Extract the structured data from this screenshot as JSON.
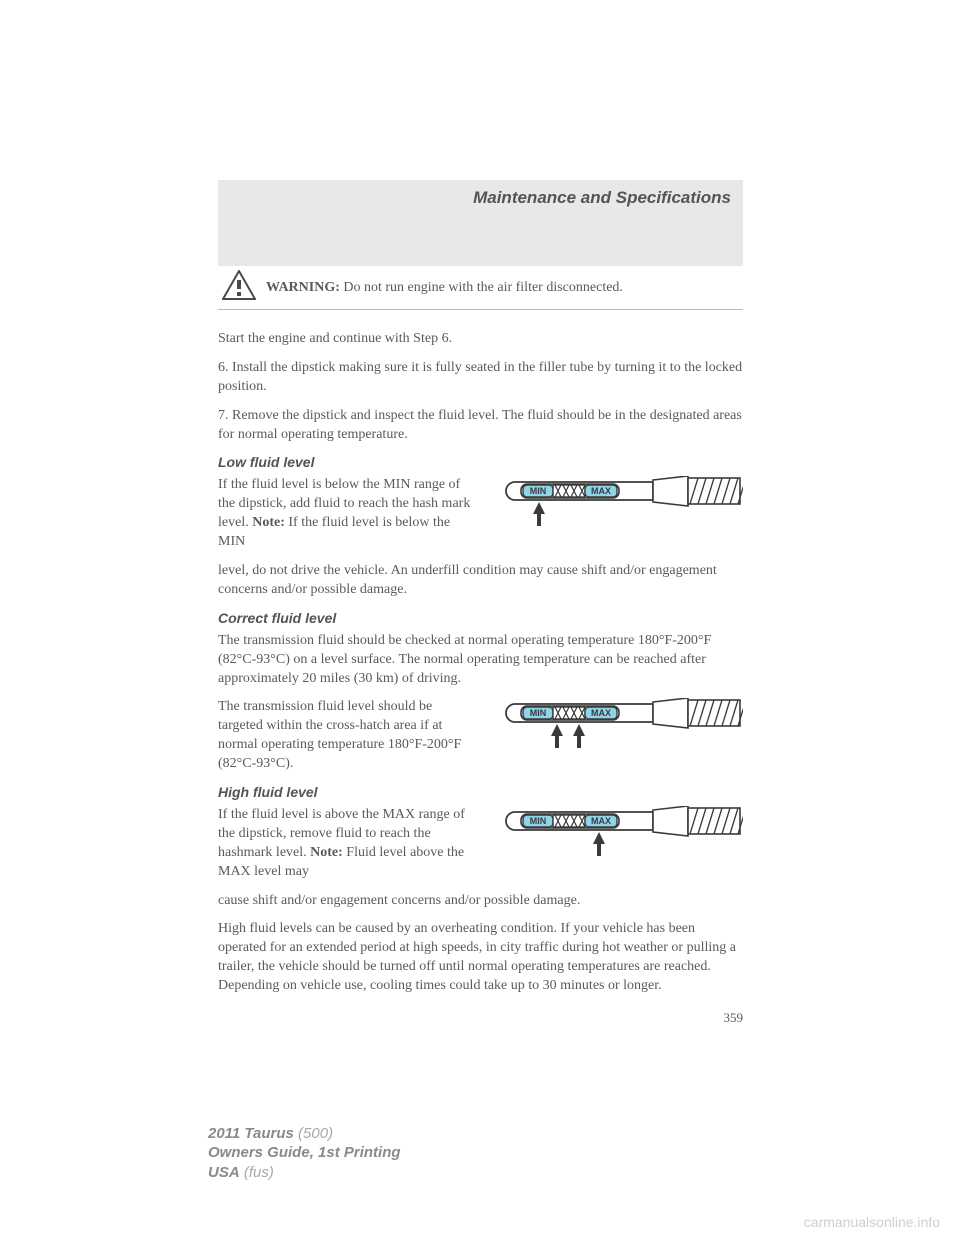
{
  "header": {
    "title": "Maintenance and Specifications"
  },
  "warning": {
    "label": "WARNING:",
    "text": "Do not run engine with the air filter disconnected."
  },
  "intro": {
    "p1": "Start the engine and continue with Step 6.",
    "p2": "6. Install the dipstick making sure it is fully seated in the filler tube by turning it to the locked position.",
    "p3": "7. Remove the dipstick and inspect the fluid level. The fluid should be in the designated areas for normal operating temperature."
  },
  "low": {
    "heading": "Low fluid level",
    "text1a": "If the fluid level is below the MIN range of the dipstick, add fluid to reach the hash mark level. ",
    "text1b": "Note:",
    "text1c": " If the fluid level is below the MIN",
    "text2": "level, do not drive the vehicle. An underfill condition may cause shift and/or engagement concerns and/or possible damage."
  },
  "correct": {
    "heading": "Correct fluid level",
    "text1": "The transmission fluid should be checked at normal operating temperature 180°F-200°F (82°C-93°C) on a level surface. The normal operating temperature can be reached after approximately 20 miles (30 km) of driving.",
    "text2": "The transmission fluid level should be targeted within the cross-hatch area if at normal operating temperature 180°F-200°F (82°C-93°C)."
  },
  "high": {
    "heading": "High fluid level",
    "text1a": "If the fluid level is above the MAX range of the dipstick, remove fluid to reach the hashmark level. ",
    "text1b": "Note:",
    "text1c": " Fluid level above the MAX level may",
    "text2": "cause shift and/or engagement concerns and/or possible damage.",
    "text3": "High fluid levels can be caused by an overheating condition. If your vehicle has been operated for an extended period at high speeds, in city traffic during hot weather or pulling a trailer, the vehicle should be turned off until normal operating temperatures are reached. Depending on vehicle use, cooling times could take up to 30 minutes or longer."
  },
  "pageNumber": "359",
  "footer": {
    "l1a": "2011 Taurus",
    "l1b": " (500)",
    "l2": "Owners Guide, 1st Printing",
    "l3a": "USA",
    "l3b": " (fus)"
  },
  "watermark": "carmanualsonline.info",
  "dipstick": {
    "min_label": "MIN",
    "max_label": "MAX",
    "fill_color": "#8fd4e8",
    "line_color": "#3a3a3a",
    "arrows": {
      "low": [
        56
      ],
      "correct": [
        74,
        96
      ],
      "high": [
        116
      ]
    }
  }
}
